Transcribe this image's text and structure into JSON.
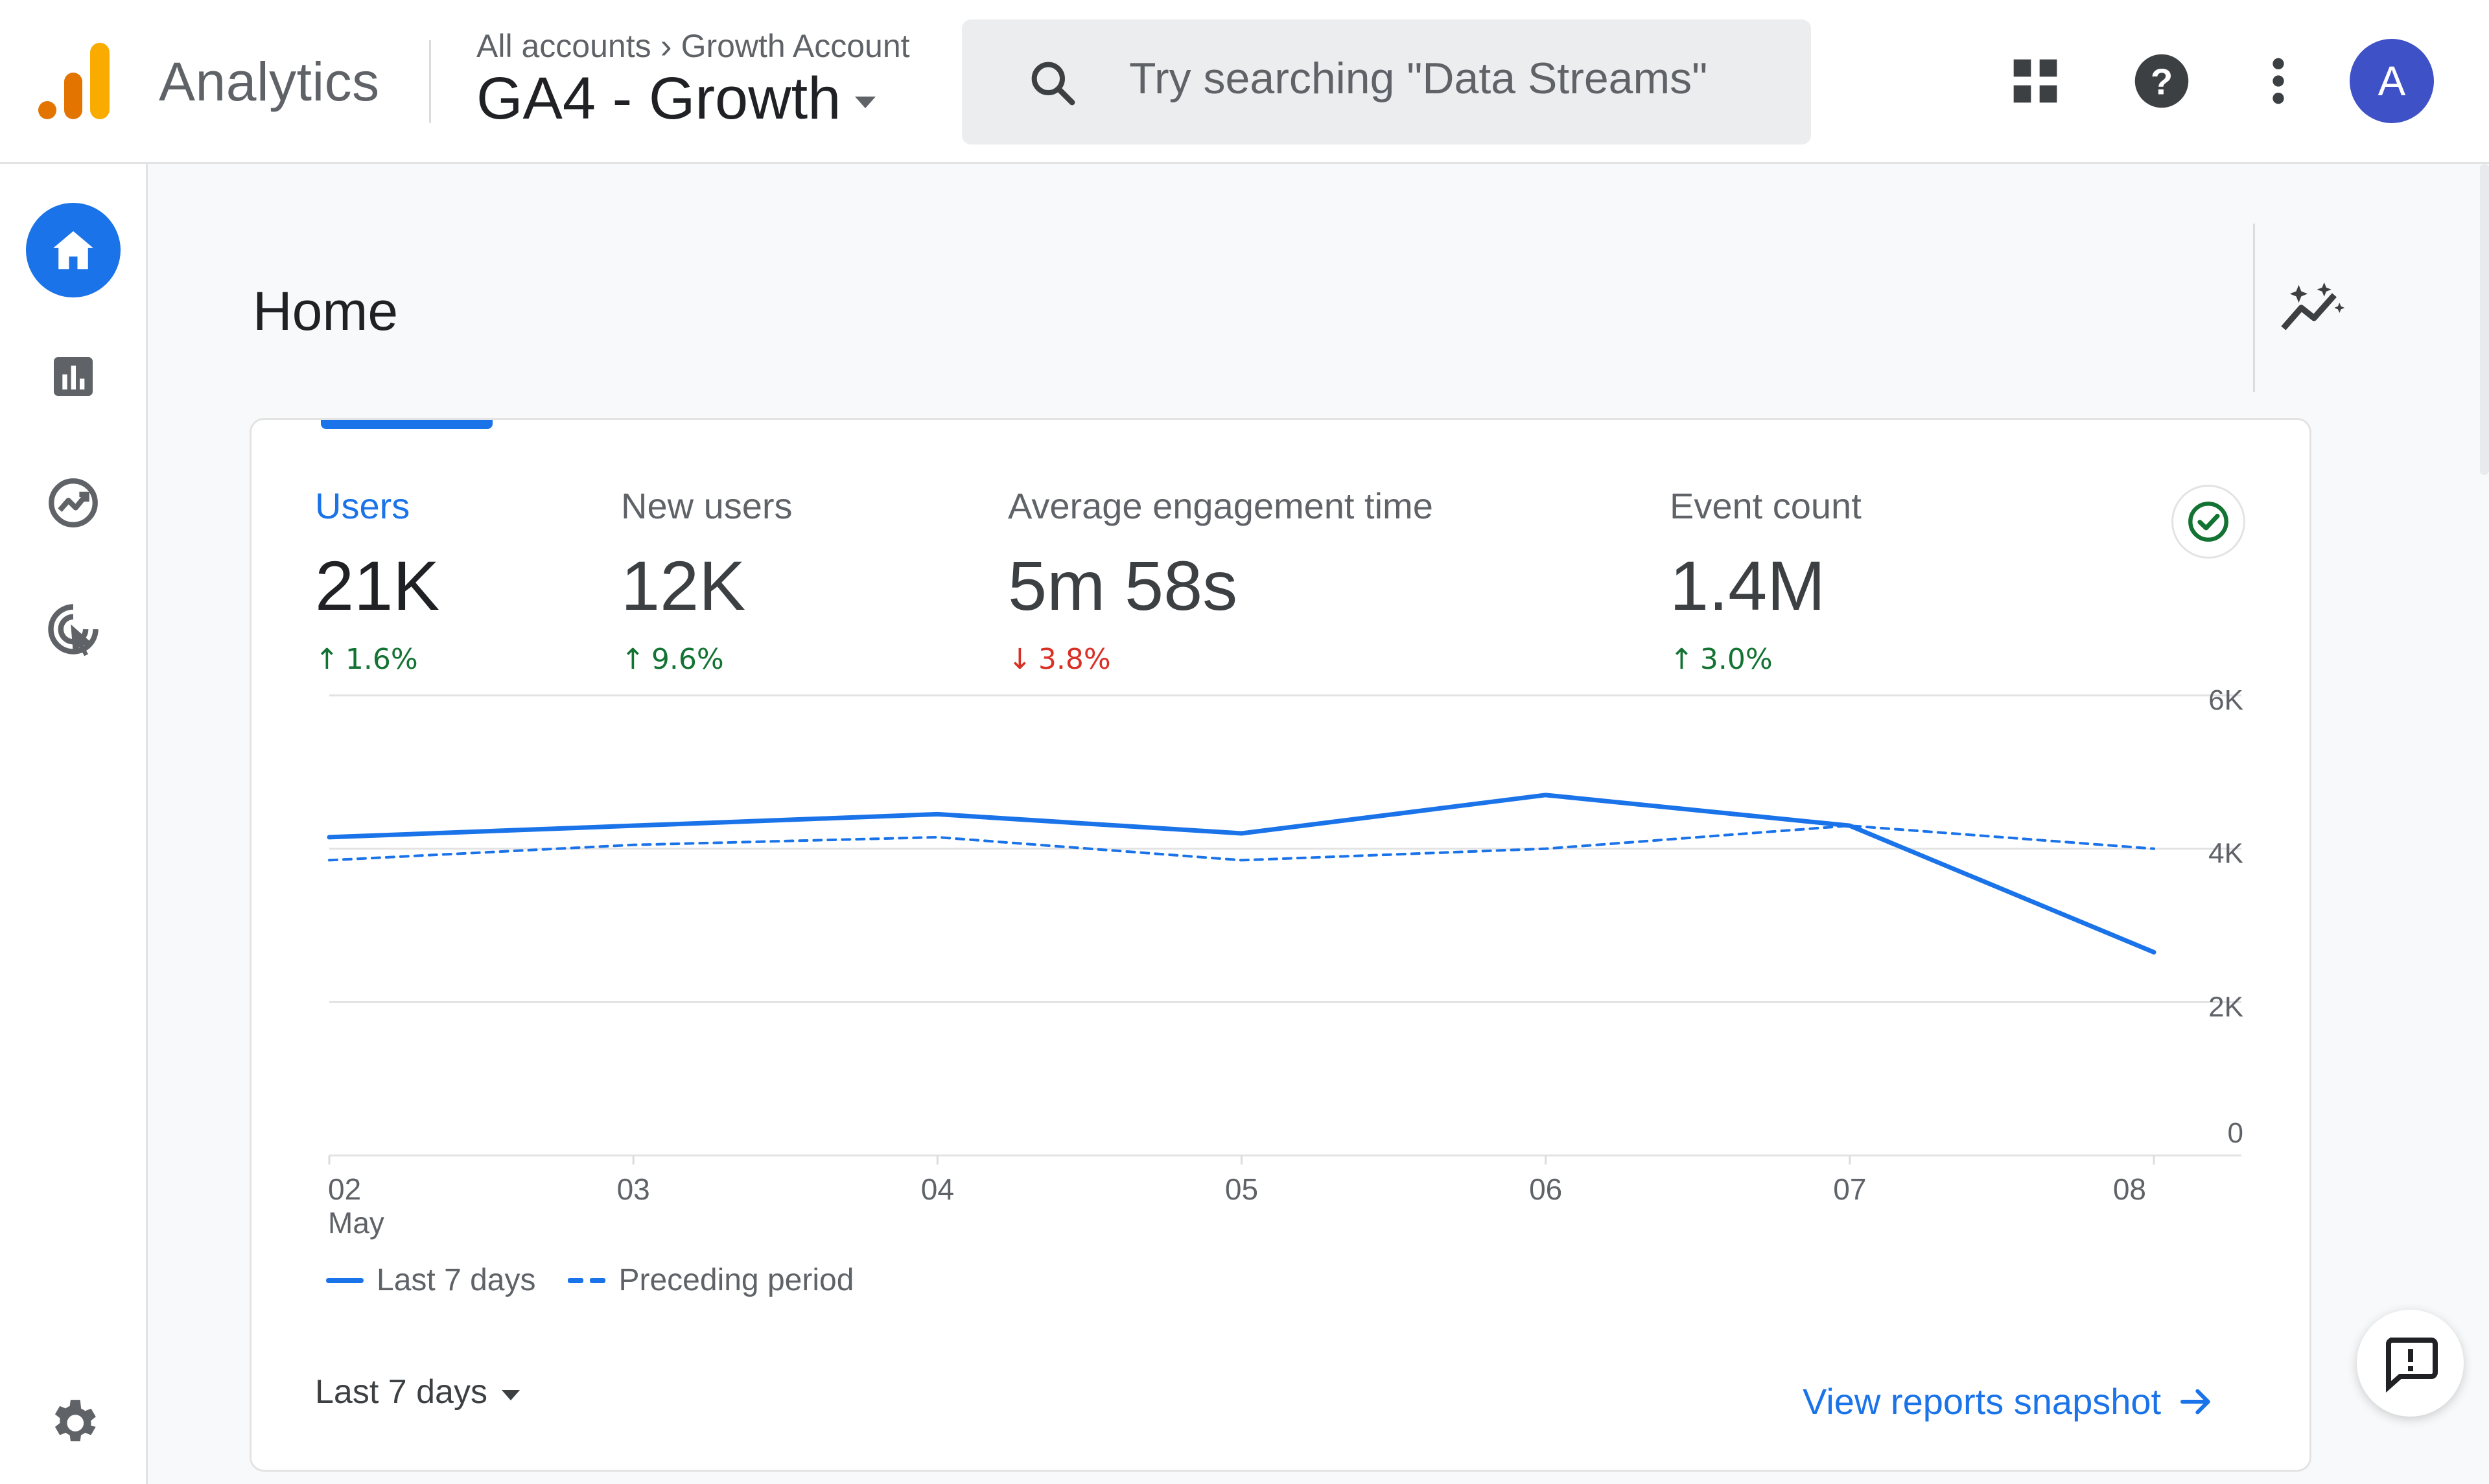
{
  "header": {
    "app_name": "Analytics",
    "breadcrumb": [
      "All accounts",
      "Growth Account"
    ],
    "property_name": "GA4 - Growth",
    "search_placeholder": "Try searching \"Data Streams\"",
    "avatar_initial": "A",
    "icons": [
      "apps-grid-icon",
      "help-icon",
      "more-vert-icon"
    ]
  },
  "sidebar": {
    "items": [
      {
        "name": "home",
        "icon": "home-icon",
        "active": true
      },
      {
        "name": "reports",
        "icon": "bar-chart-icon"
      },
      {
        "name": "explore",
        "icon": "explore-icon"
      },
      {
        "name": "advertising",
        "icon": "advertising-icon"
      },
      {
        "name": "admin",
        "icon": "gear-icon"
      }
    ]
  },
  "page": {
    "title": "Home"
  },
  "metrics": [
    {
      "label": "Users",
      "value": "21K",
      "delta": "1.6%",
      "direction": "up",
      "active": true
    },
    {
      "label": "New users",
      "value": "12K",
      "delta": "9.6%",
      "direction": "up"
    },
    {
      "label": "Average engagement time",
      "value": "5m 58s",
      "delta": "3.8%",
      "direction": "down"
    },
    {
      "label": "Event count",
      "value": "1.4M",
      "delta": "3.0%",
      "direction": "up"
    }
  ],
  "legend": {
    "current": "Last 7 days",
    "previous": "Preceding period"
  },
  "footer": {
    "date_range": "Last 7 days",
    "view_link": "View reports snapshot"
  },
  "colors": {
    "accent": "#1a73e8",
    "up": "#137333",
    "down": "#d93025",
    "logo_orange": "#f9ab00",
    "logo_dark_orange": "#e37400"
  },
  "chart_data": {
    "type": "line",
    "categories": [
      "02",
      "03",
      "04",
      "05",
      "06",
      "07",
      "08"
    ],
    "category_sublabels": [
      "May",
      "",
      "",
      "",
      "",
      "",
      ""
    ],
    "series": [
      {
        "name": "Last 7 days",
        "style": "solid",
        "values": [
          4150,
          4300,
          4450,
          4200,
          4700,
          4300,
          2650
        ]
      },
      {
        "name": "Preceding period",
        "style": "dashed",
        "values": [
          3850,
          4050,
          4150,
          3850,
          4000,
          4300,
          4000
        ]
      }
    ],
    "y_ticks": [
      "0",
      "2K",
      "4K",
      "6K"
    ],
    "ylim": [
      0,
      6000
    ],
    "y_axis_position": "right",
    "grid": true,
    "legend_position": "bottom-left"
  }
}
